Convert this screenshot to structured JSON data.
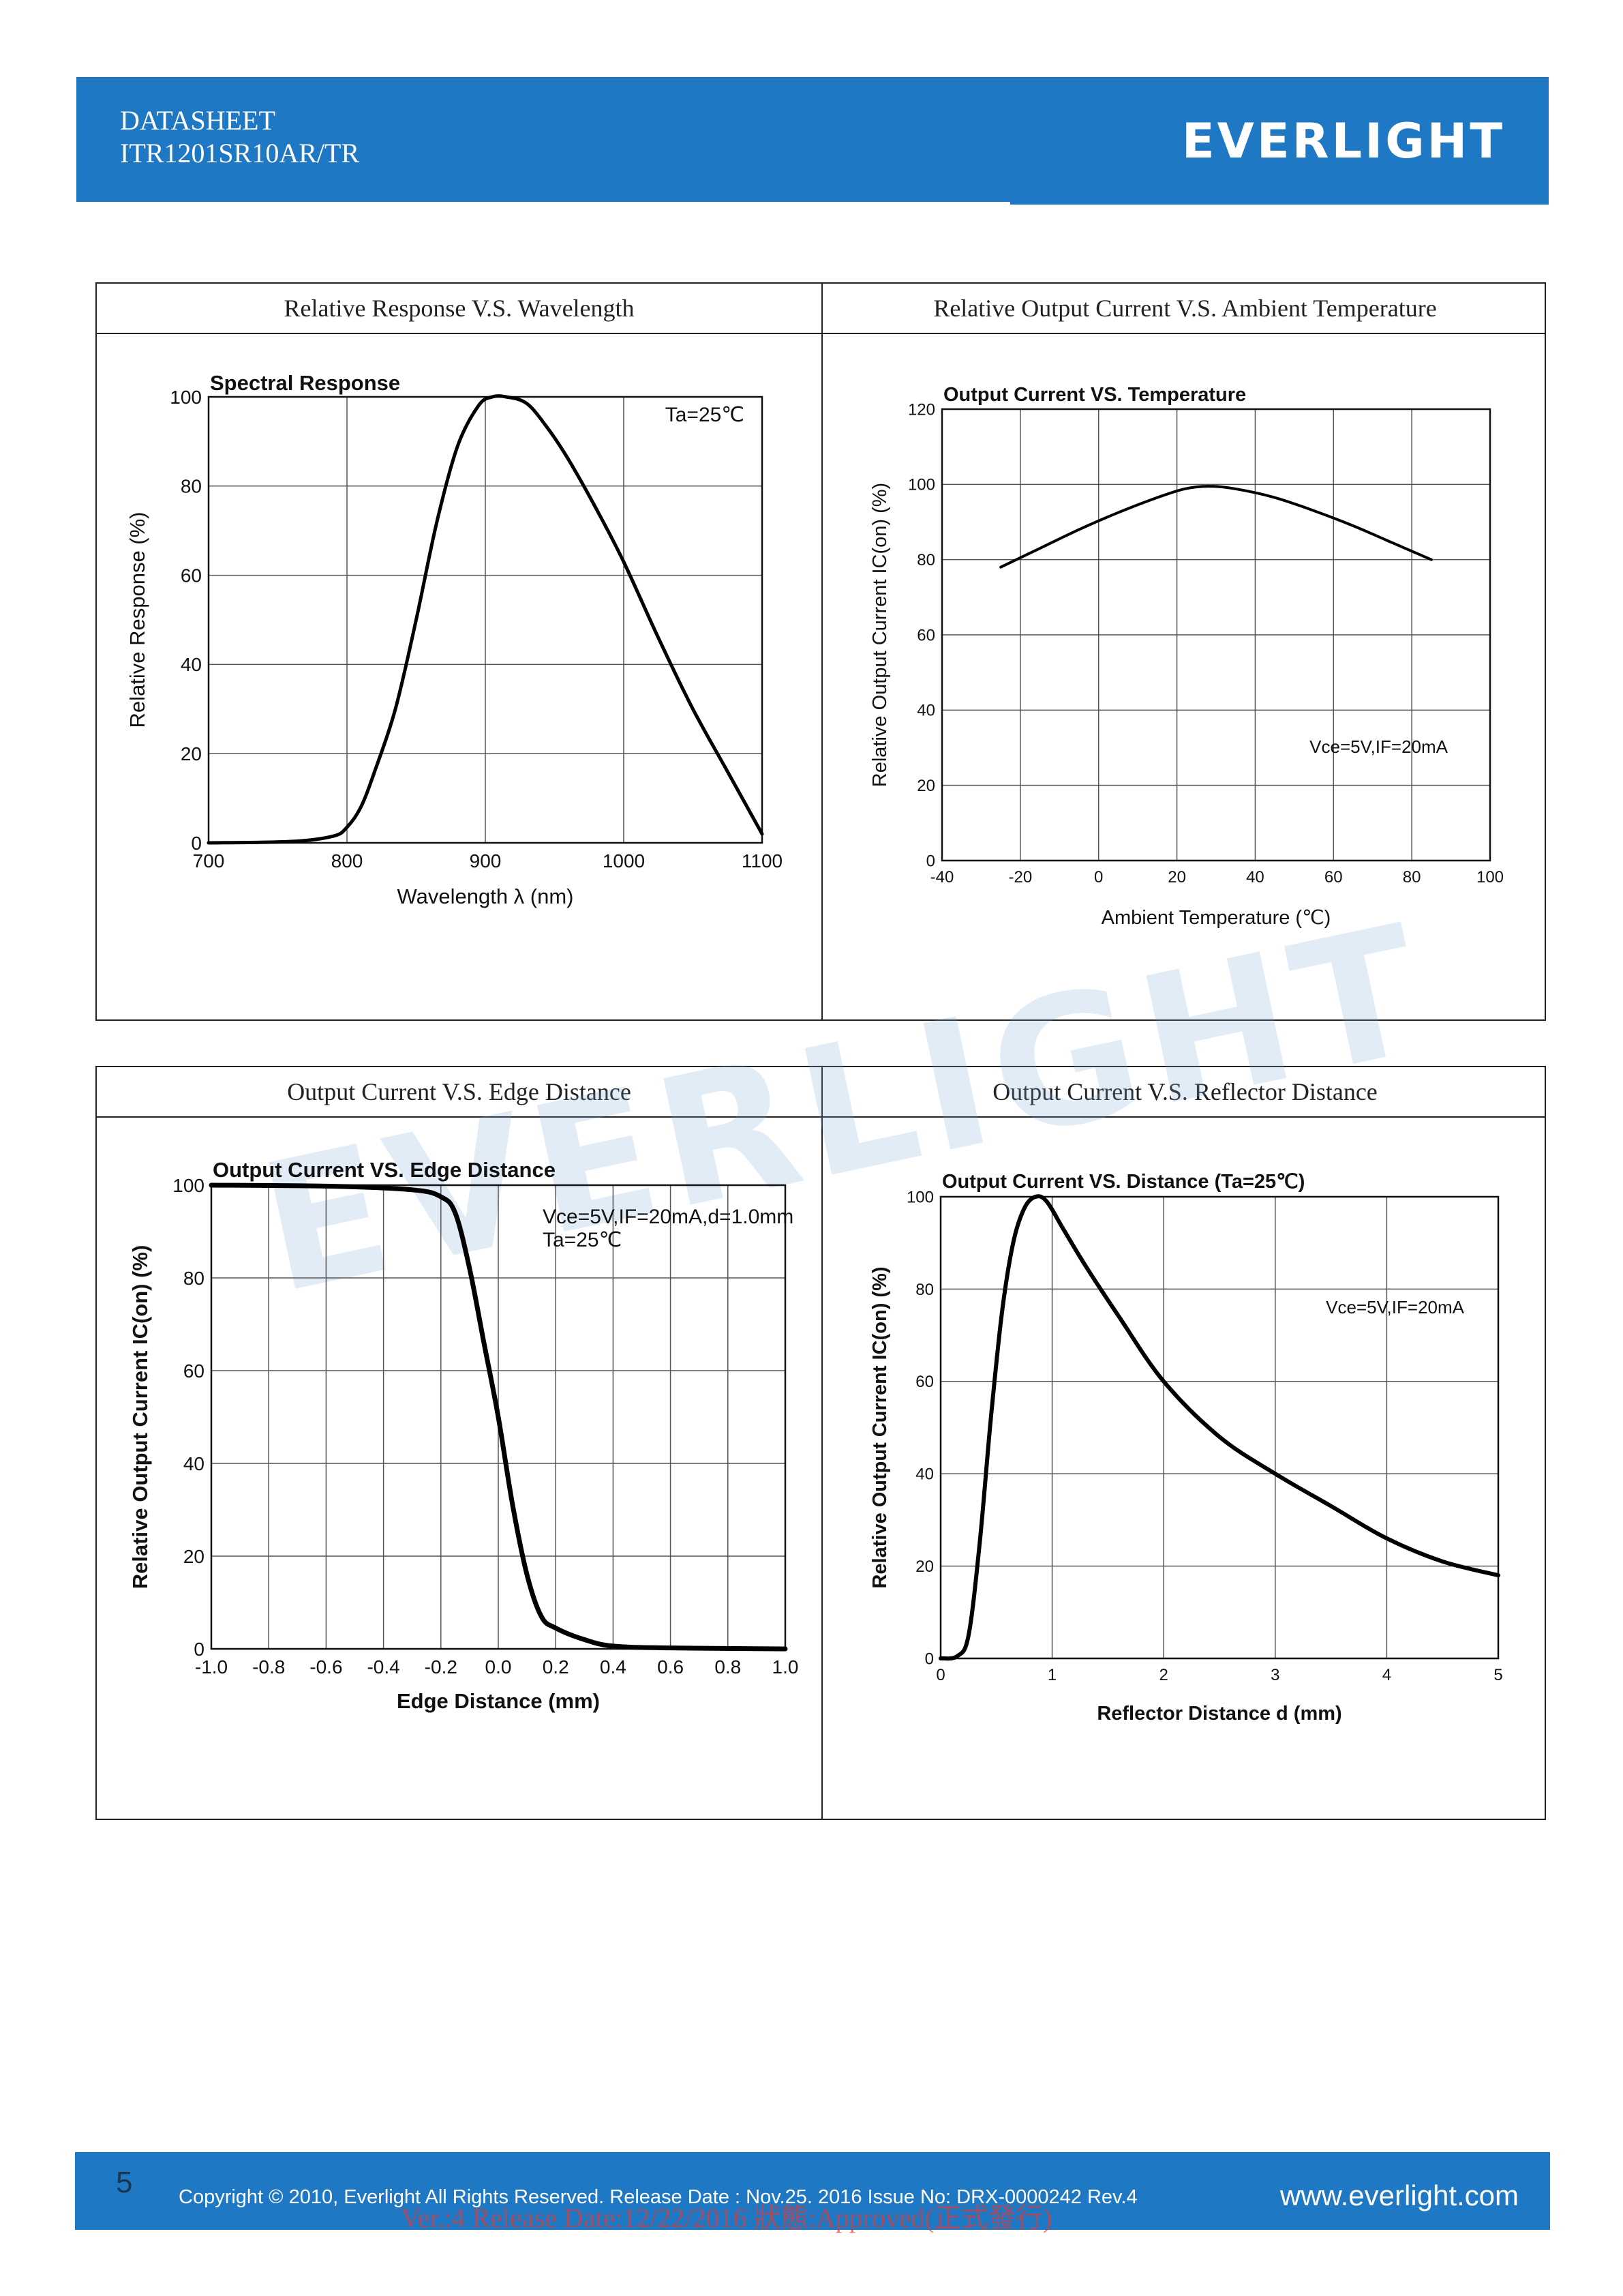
{
  "header": {
    "doc_type": "DATASHEET",
    "model": "ITR1201SR10AR/TR",
    "logo": "EVERLIGHT",
    "bg_color": "#1f78c4"
  },
  "panels": [
    {
      "title": "Relative Response V.S. Wavelength"
    },
    {
      "title": "Relative Output Current V.S. Ambient Temperature"
    },
    {
      "title": "Output Current V.S. Edge Distance"
    },
    {
      "title": "Output Current V.S. Reflector Distance"
    }
  ],
  "watermark": "EVERLIGHT",
  "chart_data": [
    {
      "type": "line",
      "title": "Spectral Response",
      "xlabel": "Wavelength λ (nm)",
      "ylabel": "Relative Response (%)",
      "annotation": "Ta=25℃",
      "xlim": [
        700,
        1100
      ],
      "ylim": [
        0,
        100
      ],
      "xticks": [
        "700",
        "800",
        "900",
        "1000",
        "1100"
      ],
      "yticks": [
        "0",
        "20",
        "40",
        "60",
        "80",
        "100"
      ],
      "grid": true,
      "x": [
        700,
        760,
        790,
        800,
        810,
        820,
        835,
        850,
        865,
        880,
        895,
        905,
        915,
        930,
        945,
        960,
        980,
        1000,
        1025,
        1050,
        1075,
        1100
      ],
      "y": [
        0,
        0.3,
        1.5,
        3.5,
        8,
        16,
        30,
        50,
        72,
        89,
        98,
        100,
        100,
        98.5,
        93,
        86,
        75,
        63,
        46,
        30,
        16,
        2
      ]
    },
    {
      "type": "line",
      "title": "Output Current VS. Temperature",
      "xlabel": "Ambient Temperature (℃)",
      "ylabel": "Relative Output Current IC(on) (%)",
      "annotation": "Vce=5V,IF=20mA",
      "xlim": [
        -40,
        100
      ],
      "ylim": [
        0,
        120
      ],
      "xticks": [
        "-40",
        "-20",
        "0",
        "20",
        "40",
        "60",
        "80",
        "100"
      ],
      "yticks": [
        "0",
        "20",
        "40",
        "60",
        "80",
        "100",
        "120"
      ],
      "grid": true,
      "x": [
        -25,
        -15,
        -5,
        5,
        15,
        22,
        28,
        35,
        45,
        55,
        65,
        75,
        85
      ],
      "y": [
        78,
        83,
        88,
        92.5,
        96.5,
        98.8,
        99.5,
        98.8,
        96.5,
        93,
        89,
        84.5,
        80
      ]
    },
    {
      "type": "line",
      "title": "Output Current VS. Edge Distance",
      "xlabel": "Edge Distance (mm)",
      "ylabel": "Relative Output Current IC(on) (%)",
      "annotation": "Vce=5V,IF=20mA,d=1.0mm",
      "annotation2": "Ta=25℃",
      "xlim": [
        -1.0,
        1.0
      ],
      "ylim": [
        0,
        100
      ],
      "xticks": [
        "-1.0",
        "-0.8",
        "-0.6",
        "-0.4",
        "-0.2",
        "0.0",
        "0.2",
        "0.4",
        "0.6",
        "0.8",
        "1.0"
      ],
      "yticks": [
        "0",
        "20",
        "40",
        "60",
        "80",
        "100"
      ],
      "grid": true,
      "x": [
        -1.0,
        -0.6,
        -0.3,
        -0.2,
        -0.15,
        -0.1,
        -0.05,
        0.0,
        0.05,
        0.1,
        0.15,
        0.2,
        0.3,
        0.4,
        0.6,
        1.0
      ],
      "y": [
        100,
        99.8,
        99,
        97.5,
        94,
        82,
        66,
        50,
        31,
        16,
        7,
        4.5,
        2,
        0.6,
        0.2,
        0
      ]
    },
    {
      "type": "line",
      "title": "Output Current VS. Distance (Ta=25℃)",
      "xlabel": "Reflector Distance d (mm)",
      "ylabel": "Relative Output Current  IC(on) (%)",
      "annotation": "Vce=5V,IF=20mA",
      "xlim": [
        0,
        5
      ],
      "ylim": [
        0,
        100
      ],
      "xticks": [
        "0",
        "1",
        "2",
        "3",
        "4",
        "5"
      ],
      "yticks": [
        "0",
        "20",
        "40",
        "60",
        "80",
        "100"
      ],
      "grid": true,
      "x": [
        0,
        0.15,
        0.25,
        0.35,
        0.45,
        0.55,
        0.65,
        0.75,
        0.85,
        0.95,
        1.1,
        1.3,
        1.6,
        2.0,
        2.5,
        3.0,
        3.5,
        4.0,
        4.5,
        5.0
      ],
      "y": [
        0,
        0.5,
        5,
        25,
        52,
        75,
        90,
        97.5,
        100,
        99,
        93,
        85,
        74,
        60,
        48,
        40,
        33,
        26,
        21,
        18
      ]
    }
  ],
  "footer": {
    "page_number": "5",
    "copyright": "Copyright © 2010, Everlight All Rights Reserved. Release Date : Nov.25. 2016   Issue No: DRX-0000242   Rev.4",
    "website": "www.everlight.com",
    "stamp": "Ver.:4    Release Date:12/22/2016    狀態:Approved(正式發行)"
  }
}
